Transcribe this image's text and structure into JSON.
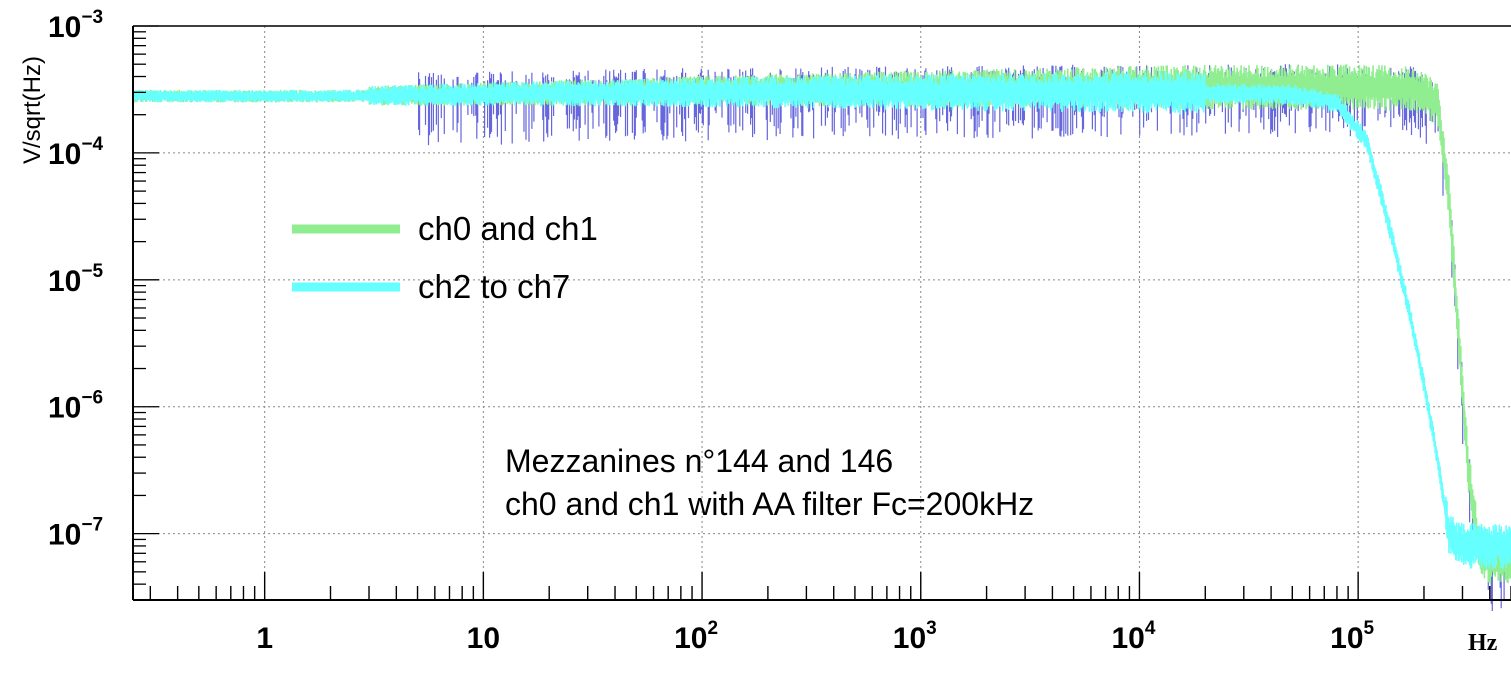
{
  "chart_data": {
    "type": "line",
    "x_scale": "log",
    "y_scale": "log",
    "xlim": [
      0.25,
      500000
    ],
    "ylim": [
      3e-08,
      0.001
    ],
    "grid": true,
    "xlabel": "Hz",
    "ylabel": "V/sqrt(Hz)",
    "x_ticks": [
      {
        "base": "1",
        "exp": ""
      },
      {
        "base": "10",
        "exp": ""
      },
      {
        "base": "10",
        "exp": "2"
      },
      {
        "base": "10",
        "exp": "3"
      },
      {
        "base": "10",
        "exp": "4"
      },
      {
        "base": "10",
        "exp": "5"
      }
    ],
    "y_ticks": [
      {
        "base": "10",
        "exp": "−3"
      },
      {
        "base": "10",
        "exp": "−4"
      },
      {
        "base": "10",
        "exp": "−5"
      },
      {
        "base": "10",
        "exp": "−6"
      },
      {
        "base": "10",
        "exp": "−7"
      }
    ],
    "legend": [
      {
        "label": "ch0 and ch1",
        "color": "#90ee90"
      },
      {
        "label": "ch2 to ch7",
        "color": "#66ffff"
      }
    ],
    "annotations": [
      "Mezzanines n°144 and 146",
      "ch0 and ch1 with AA filter Fc=200kHz"
    ],
    "series": [
      {
        "name": "ch0 and ch1",
        "color": "#90ee90",
        "noise_color": "#6666dd",
        "x": [
          0.25,
          2,
          10,
          100,
          1000,
          10000,
          100000,
          180000,
          230000,
          260000,
          290000,
          320000,
          360000,
          400000,
          500000
        ],
        "y": [
          0.00028,
          0.00028,
          0.00029,
          0.00031,
          0.00032,
          0.00033,
          0.00033,
          0.00032,
          0.00025,
          4.5e-05,
          3e-06,
          3e-07,
          7e-08,
          6e-08,
          6e-08
        ]
      },
      {
        "name": "ch2 to ch7",
        "color": "#66ffff",
        "x": [
          0.25,
          2,
          10,
          100,
          1000,
          10000,
          50000,
          80000,
          110000,
          140000,
          170000,
          200000,
          230000,
          260000,
          300000,
          400000,
          500000
        ],
        "y": [
          0.00028,
          0.00028,
          0.00029,
          0.0003,
          0.0003,
          0.0003,
          0.00029,
          0.00025,
          0.00012,
          2.5e-05,
          6e-06,
          1.5e-06,
          4e-07,
          1e-07,
          8e-08,
          8e-08,
          8e-08
        ]
      }
    ]
  }
}
